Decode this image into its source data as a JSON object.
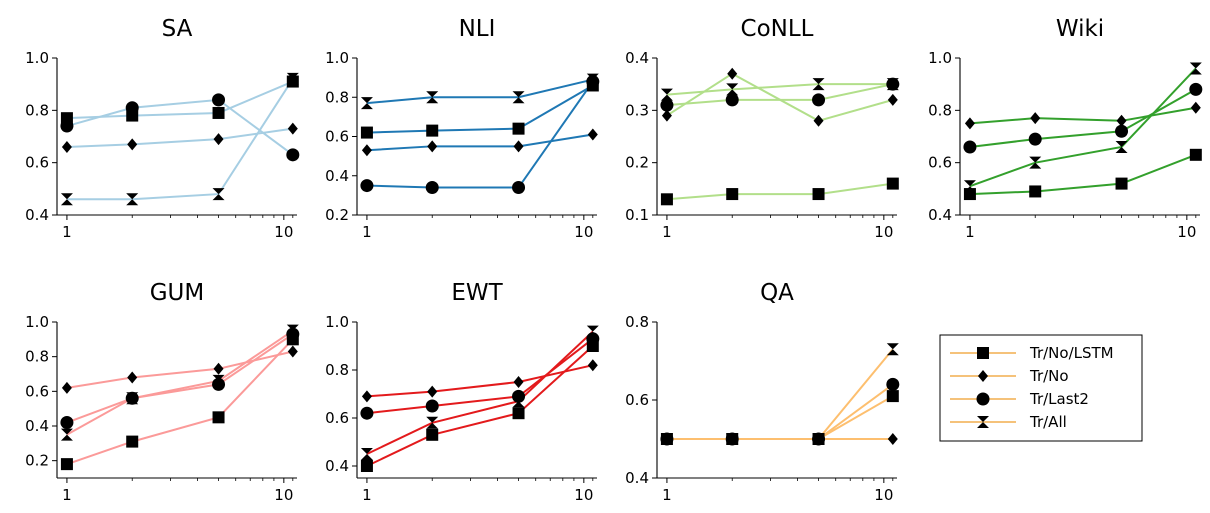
{
  "legend": {
    "entries": [
      {
        "label": "Tr/No/LSTM",
        "marker": "square"
      },
      {
        "label": "Tr/No",
        "marker": "diamond"
      },
      {
        "label": "Tr/Last2",
        "marker": "circle"
      },
      {
        "label": "Tr/All",
        "marker": "bowtie"
      }
    ],
    "line_color": "#f5c27a"
  },
  "chart_data": [
    {
      "type": "line",
      "title": "SA",
      "color": "#a6cee3",
      "x": [
        1,
        2,
        5,
        11
      ],
      "xscale": "log",
      "xlim": [
        0.9,
        11.5
      ],
      "xticks": [
        "1",
        "10"
      ],
      "ylim": [
        0.4,
        1.0
      ],
      "yticks": [
        "0.4",
        "0.6",
        "0.8",
        "1.0"
      ],
      "series": [
        {
          "name": "Tr/No/LSTM",
          "marker": "square",
          "values": [
            0.77,
            0.78,
            0.79,
            0.91
          ]
        },
        {
          "name": "Tr/No",
          "marker": "diamond",
          "values": [
            0.66,
            0.67,
            0.69,
            0.73
          ]
        },
        {
          "name": "Tr/Last2",
          "marker": "circle",
          "values": [
            0.74,
            0.81,
            0.84,
            0.63
          ]
        },
        {
          "name": "Tr/All",
          "marker": "bowtie",
          "values": [
            0.46,
            0.46,
            0.48,
            0.92
          ]
        }
      ]
    },
    {
      "type": "line",
      "title": "NLI",
      "color": "#1f78b4",
      "x": [
        1,
        2,
        5,
        11
      ],
      "xscale": "log",
      "xlim": [
        0.9,
        11.5
      ],
      "xticks": [
        "1",
        "10"
      ],
      "ylim": [
        0.2,
        1.0
      ],
      "yticks": [
        "0.2",
        "0.4",
        "0.6",
        "0.8",
        "1.0"
      ],
      "series": [
        {
          "name": "Tr/No/LSTM",
          "marker": "square",
          "values": [
            0.62,
            0.63,
            0.64,
            0.86
          ]
        },
        {
          "name": "Tr/No",
          "marker": "diamond",
          "values": [
            0.53,
            0.55,
            0.55,
            0.61
          ]
        },
        {
          "name": "Tr/Last2",
          "marker": "circle",
          "values": [
            0.35,
            0.34,
            0.34,
            0.88
          ]
        },
        {
          "name": "Tr/All",
          "marker": "bowtie",
          "values": [
            0.77,
            0.8,
            0.8,
            0.89
          ]
        }
      ]
    },
    {
      "type": "line",
      "title": "CoNLL",
      "color": "#b2df8a",
      "x": [
        1,
        2,
        5,
        11
      ],
      "xscale": "log",
      "xlim": [
        0.9,
        11.5
      ],
      "xticks": [
        "1",
        "10"
      ],
      "ylim": [
        0.1,
        0.4
      ],
      "yticks": [
        "0.1",
        "0.2",
        "0.3",
        "0.4"
      ],
      "series": [
        {
          "name": "Tr/No/LSTM",
          "marker": "square",
          "values": [
            0.13,
            0.14,
            0.14,
            0.16
          ]
        },
        {
          "name": "Tr/No",
          "marker": "diamond",
          "values": [
            0.29,
            0.37,
            0.28,
            0.32
          ]
        },
        {
          "name": "Tr/Last2",
          "marker": "circle",
          "values": [
            0.31,
            0.32,
            0.32,
            0.35
          ]
        },
        {
          "name": "Tr/All",
          "marker": "bowtie",
          "values": [
            0.33,
            0.34,
            0.35,
            0.35
          ]
        }
      ]
    },
    {
      "type": "line",
      "title": "Wiki",
      "color": "#33a02c",
      "x": [
        1,
        2,
        5,
        11
      ],
      "xscale": "log",
      "xlim": [
        0.9,
        11.5
      ],
      "xticks": [
        "1",
        "10"
      ],
      "ylim": [
        0.4,
        1.0
      ],
      "yticks": [
        "0.4",
        "0.6",
        "0.8",
        "1.0"
      ],
      "series": [
        {
          "name": "Tr/No/LSTM",
          "marker": "square",
          "values": [
            0.48,
            0.49,
            0.52,
            0.63
          ]
        },
        {
          "name": "Tr/No",
          "marker": "diamond",
          "values": [
            0.75,
            0.77,
            0.76,
            0.81
          ]
        },
        {
          "name": "Tr/Last2",
          "marker": "circle",
          "values": [
            0.66,
            0.69,
            0.72,
            0.88
          ]
        },
        {
          "name": "Tr/All",
          "marker": "bowtie",
          "values": [
            0.51,
            0.6,
            0.66,
            0.96
          ]
        }
      ]
    },
    {
      "type": "line",
      "title": "GUM",
      "color": "#fb9a99",
      "x": [
        1,
        2,
        5,
        11
      ],
      "xscale": "log",
      "xlim": [
        0.9,
        11.5
      ],
      "xticks": [
        "1",
        "10"
      ],
      "ylim": [
        0.1,
        1.0
      ],
      "yticks": [
        "0.2",
        "0.4",
        "0.6",
        "0.8",
        "1.0"
      ],
      "series": [
        {
          "name": "Tr/No/LSTM",
          "marker": "square",
          "values": [
            0.18,
            0.31,
            0.45,
            0.9
          ]
        },
        {
          "name": "Tr/No",
          "marker": "diamond",
          "values": [
            0.62,
            0.68,
            0.73,
            0.83
          ]
        },
        {
          "name": "Tr/Last2",
          "marker": "circle",
          "values": [
            0.42,
            0.56,
            0.64,
            0.93
          ]
        },
        {
          "name": "Tr/All",
          "marker": "bowtie",
          "values": [
            0.35,
            0.56,
            0.66,
            0.95
          ]
        }
      ]
    },
    {
      "type": "line",
      "title": "EWT",
      "color": "#e31a1c",
      "x": [
        1,
        2,
        5,
        11
      ],
      "xscale": "log",
      "xlim": [
        0.9,
        11.5
      ],
      "xticks": [
        "1",
        "10"
      ],
      "ylim": [
        0.35,
        1.0
      ],
      "yticks": [
        "0.4",
        "0.6",
        "0.8",
        "1.0"
      ],
      "series": [
        {
          "name": "Tr/No/LSTM",
          "marker": "square",
          "values": [
            0.4,
            0.53,
            0.62,
            0.9
          ]
        },
        {
          "name": "Tr/No",
          "marker": "diamond",
          "values": [
            0.69,
            0.71,
            0.75,
            0.82
          ]
        },
        {
          "name": "Tr/Last2",
          "marker": "circle",
          "values": [
            0.62,
            0.65,
            0.69,
            0.93
          ]
        },
        {
          "name": "Tr/All",
          "marker": "bowtie",
          "values": [
            0.45,
            0.58,
            0.67,
            0.96
          ]
        }
      ]
    },
    {
      "type": "line",
      "title": "QA",
      "color": "#fdbf6f",
      "x": [
        1,
        2,
        5,
        11
      ],
      "xscale": "log",
      "xlim": [
        0.9,
        11.5
      ],
      "xticks": [
        "1",
        "10"
      ],
      "ylim": [
        0.4,
        0.8
      ],
      "yticks": [
        "0.4",
        "0.6",
        "0.8"
      ],
      "series": [
        {
          "name": "Tr/No/LSTM",
          "marker": "square",
          "values": [
            0.5,
            0.5,
            0.5,
            0.61
          ]
        },
        {
          "name": "Tr/No",
          "marker": "diamond",
          "values": [
            0.5,
            0.5,
            0.5,
            0.5
          ]
        },
        {
          "name": "Tr/Last2",
          "marker": "circle",
          "values": [
            0.5,
            0.5,
            0.5,
            0.64
          ]
        },
        {
          "name": "Tr/All",
          "marker": "bowtie",
          "values": [
            0.5,
            0.5,
            0.5,
            0.73
          ]
        }
      ]
    }
  ]
}
